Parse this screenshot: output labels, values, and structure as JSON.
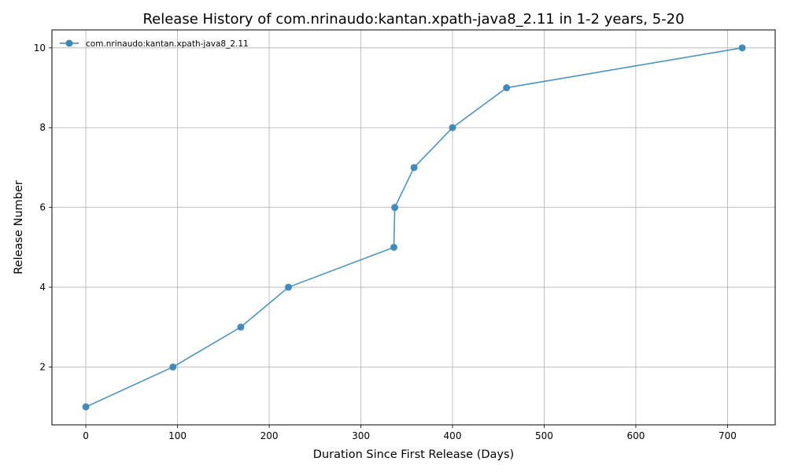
{
  "chart_data": {
    "type": "line",
    "title": "Release History of com.nrinaudo:kantan.xpath-java8_2.11 in 1-2 years, 5-20",
    "xlabel": "Duration Since First Release (Days)",
    "ylabel": "Release Number",
    "xlim": [
      -37,
      752
    ],
    "ylim": [
      0.55,
      10.45
    ],
    "xticks": [
      0,
      100,
      200,
      300,
      400,
      500,
      600,
      700
    ],
    "yticks": [
      2,
      4,
      6,
      8,
      10
    ],
    "grid": true,
    "legend_position": "top-left",
    "series": [
      {
        "name": "com.nrinaudo:kantan.xpath-java8_2.11",
        "color": "#3a87b8",
        "marker": "circle",
        "x": [
          0,
          95,
          169,
          221,
          336,
          337,
          358,
          400,
          459,
          716
        ],
        "y": [
          1,
          2,
          3,
          4,
          5,
          6,
          7,
          8,
          9,
          10
        ]
      }
    ]
  }
}
